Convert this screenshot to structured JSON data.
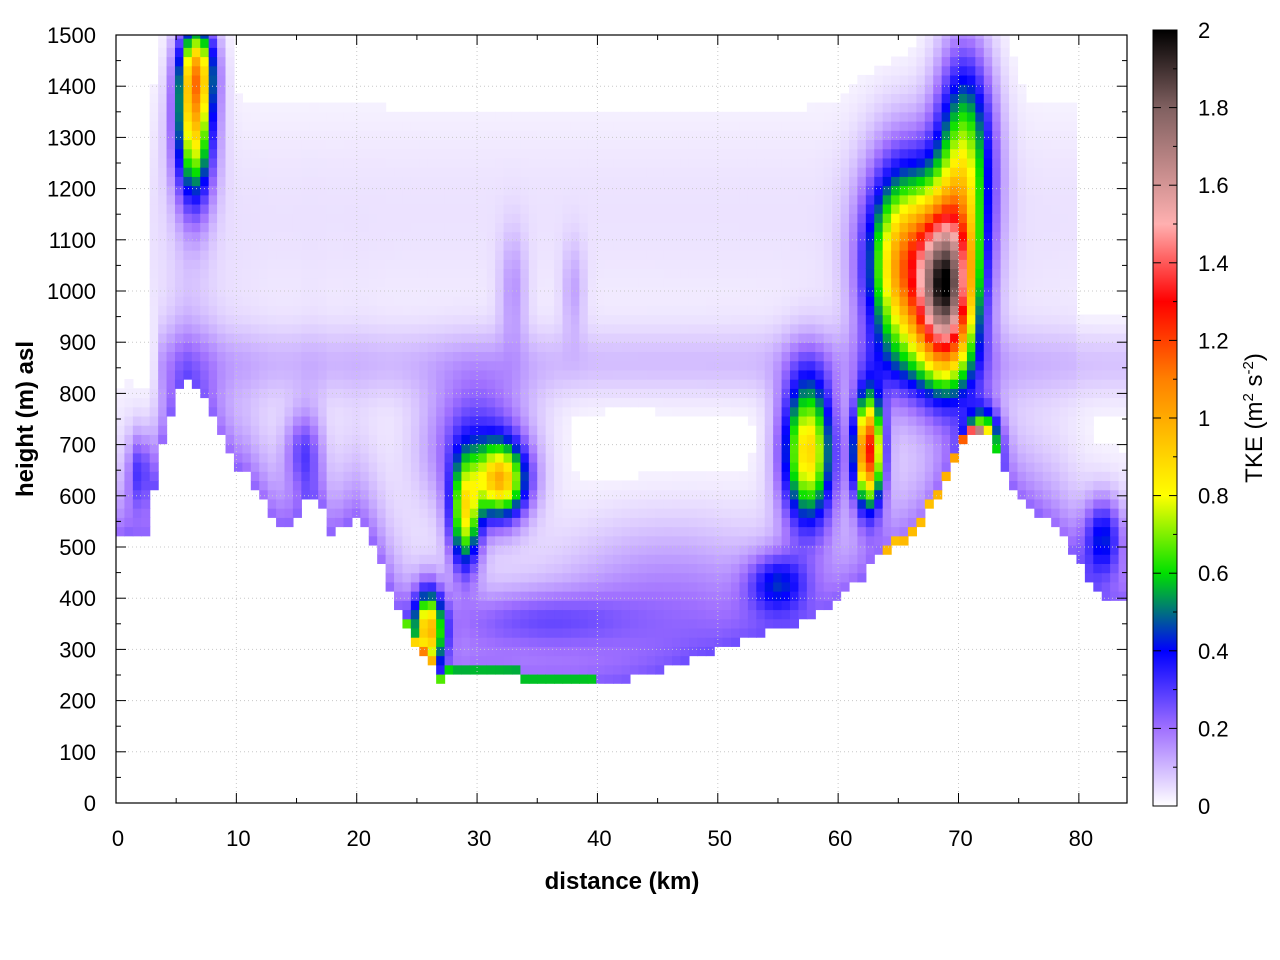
{
  "chart_data": {
    "type": "heatmap",
    "title": "",
    "xlabel": "distance (km)",
    "ylabel": "height (m) asl",
    "colorbar_label": "TKE (m² s⁻²)",
    "colorbar_label_parts": {
      "base": "TKE (m",
      "sup1": "2",
      "mid": " s",
      "sup2": "-2",
      "end": ")"
    },
    "xlim": [
      0,
      84
    ],
    "ylim": [
      0,
      1500
    ],
    "clim": [
      0,
      2
    ],
    "x_ticks": [
      0,
      10,
      20,
      30,
      40,
      50,
      60,
      70,
      80
    ],
    "x_tick_labels": [
      "0",
      "10",
      "20",
      "30",
      "40",
      "50",
      "60",
      "70",
      "80"
    ],
    "y_ticks": [
      0,
      100,
      200,
      300,
      400,
      500,
      600,
      700,
      800,
      900,
      1000,
      1100,
      1200,
      1300,
      1400,
      1500
    ],
    "y_tick_labels": [
      "0",
      "100",
      "200",
      "300",
      "400",
      "500",
      "600",
      "700",
      "800",
      "900",
      "1000",
      "1100",
      "1200",
      "1300",
      "1400",
      "1500"
    ],
    "c_ticks": [
      0,
      0.2,
      0.4,
      0.6,
      0.8,
      1,
      1.2,
      1.4,
      1.6,
      1.8,
      2
    ],
    "c_tick_labels": [
      "0",
      "0.2",
      "0.4",
      "0.6",
      "0.8",
      "1",
      "1.2",
      "1.4",
      "1.6",
      "1.8",
      "2"
    ],
    "grid": true,
    "colormap_stops": [
      {
        "v": 0.0,
        "color": "#ffffff"
      },
      {
        "v": 0.2,
        "color": "#a070ff"
      },
      {
        "v": 0.4,
        "color": "#0000ff"
      },
      {
        "v": 0.6,
        "color": "#00e000"
      },
      {
        "v": 0.8,
        "color": "#ffff00"
      },
      {
        "v": 1.1,
        "color": "#ff8000"
      },
      {
        "v": 1.3,
        "color": "#ff0000"
      },
      {
        "v": 1.5,
        "color": "#ffb0b0"
      },
      {
        "v": 1.8,
        "color": "#806060"
      },
      {
        "v": 2.0,
        "color": "#000000"
      }
    ],
    "terrain": {
      "x": [
        0,
        1,
        2,
        2.5,
        3,
        4,
        5,
        6,
        7,
        8,
        9,
        10,
        11,
        12,
        13,
        14,
        15,
        16,
        17,
        18,
        19,
        20,
        21,
        22,
        23,
        24,
        25,
        26,
        27,
        28,
        29,
        30,
        32,
        34,
        36,
        38,
        40,
        42,
        44,
        46,
        48,
        50,
        52,
        54,
        56,
        58,
        60,
        62,
        63,
        64,
        65,
        66,
        67,
        68,
        69,
        70,
        71,
        72,
        73,
        74,
        75,
        76,
        77,
        78,
        79,
        80,
        81,
        82,
        83,
        84
      ],
      "height": [
        520,
        530,
        515,
        520,
        600,
        720,
        800,
        825,
        800,
        760,
        700,
        660,
        640,
        600,
        560,
        540,
        560,
        610,
        590,
        520,
        545,
        560,
        530,
        470,
        400,
        350,
        300,
        270,
        240,
        245,
        250,
        255,
        250,
        240,
        238,
        235,
        237,
        240,
        250,
        265,
        285,
        300,
        320,
        335,
        345,
        360,
        400,
        440,
        470,
        490,
        500,
        520,
        545,
        590,
        640,
        690,
        720,
        730,
        700,
        640,
        600,
        580,
        560,
        540,
        510,
        470,
        430,
        400,
        395,
        400
      ]
    },
    "blobs": [
      {
        "x": 6.5,
        "y": 1330,
        "rx": 1.6,
        "ry": 160,
        "peak": 0.85
      },
      {
        "x": 6.8,
        "y": 1440,
        "rx": 1.5,
        "ry": 90,
        "peak": 0.55
      },
      {
        "x": 26,
        "y": 340,
        "rx": 1.3,
        "ry": 80,
        "peak": 0.85
      },
      {
        "x": 29,
        "y": 560,
        "rx": 1.3,
        "ry": 110,
        "peak": 0.7
      },
      {
        "x": 32,
        "y": 630,
        "rx": 2.2,
        "ry": 75,
        "peak": 0.8
      },
      {
        "x": 30,
        "y": 700,
        "rx": 4.5,
        "ry": 140,
        "peak": 0.3
      },
      {
        "x": 57.5,
        "y": 690,
        "rx": 2.2,
        "ry": 150,
        "peak": 0.88
      },
      {
        "x": 62.5,
        "y": 690,
        "rx": 1.2,
        "ry": 110,
        "peak": 1.25
      },
      {
        "x": 65.5,
        "y": 1050,
        "rx": 3.2,
        "ry": 200,
        "peak": 1.0
      },
      {
        "x": 69,
        "y": 1000,
        "rx": 2.4,
        "ry": 170,
        "peak": 1.6
      },
      {
        "x": 70.5,
        "y": 1250,
        "rx": 2.4,
        "ry": 220,
        "peak": 0.7
      },
      {
        "x": 55,
        "y": 430,
        "rx": 2.5,
        "ry": 60,
        "peak": 0.3
      },
      {
        "x": 82,
        "y": 520,
        "rx": 1.6,
        "ry": 80,
        "peak": 0.35
      },
      {
        "x": 2,
        "y": 650,
        "rx": 1.0,
        "ry": 80,
        "peak": 0.25
      },
      {
        "x": 15.5,
        "y": 690,
        "rx": 1.5,
        "ry": 80,
        "peak": 0.2
      },
      {
        "x": 35,
        "y": 360,
        "rx": 8,
        "ry": 60,
        "peak": 0.16
      },
      {
        "x": 45,
        "y": 420,
        "rx": 9,
        "ry": 150,
        "peak": 0.12
      },
      {
        "x": 33,
        "y": 1000,
        "rx": 1.2,
        "ry": 120,
        "peak": 0.12
      },
      {
        "x": 38,
        "y": 1000,
        "rx": 1.0,
        "ry": 100,
        "peak": 0.1
      },
      {
        "x": 72,
        "y": 700,
        "rx": 1.3,
        "ry": 60,
        "peak": 0.9
      }
    ],
    "bands": [
      {
        "x0": 3.5,
        "x1": 84,
        "y": 860,
        "dy": 70,
        "peak": 0.08
      }
    ]
  }
}
